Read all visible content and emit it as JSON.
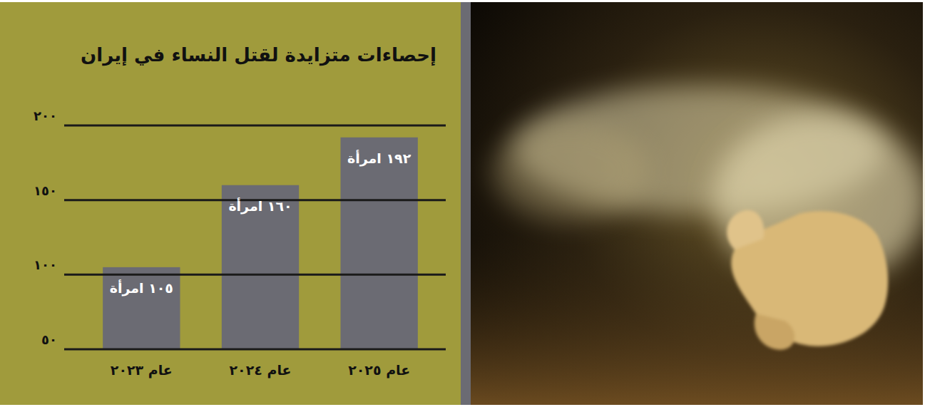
{
  "chart_data": {
    "type": "bar",
    "title": "إحصاءات متزايدة لقتل النساء في إيران",
    "categories": [
      "عام ٢٠٢٣",
      "عام ٢٠٢٤",
      "عام ٢٠٢٥"
    ],
    "values": [
      105,
      160,
      192
    ],
    "value_labels": [
      "١٠٥ امرأة",
      "١٦٠ امرأة",
      "١٩٢ امرأة"
    ],
    "color": "#6b6b73",
    "ylim": [
      50,
      200
    ],
    "yticks": [
      {
        "value": 50,
        "label": "٥٠"
      },
      {
        "value": 100,
        "label": "١٠٠"
      },
      {
        "value": 150,
        "label": "١٥٠"
      },
      {
        "value": 200,
        "label": "٢٠٠"
      }
    ],
    "grid": true,
    "data_labels": true
  }
}
